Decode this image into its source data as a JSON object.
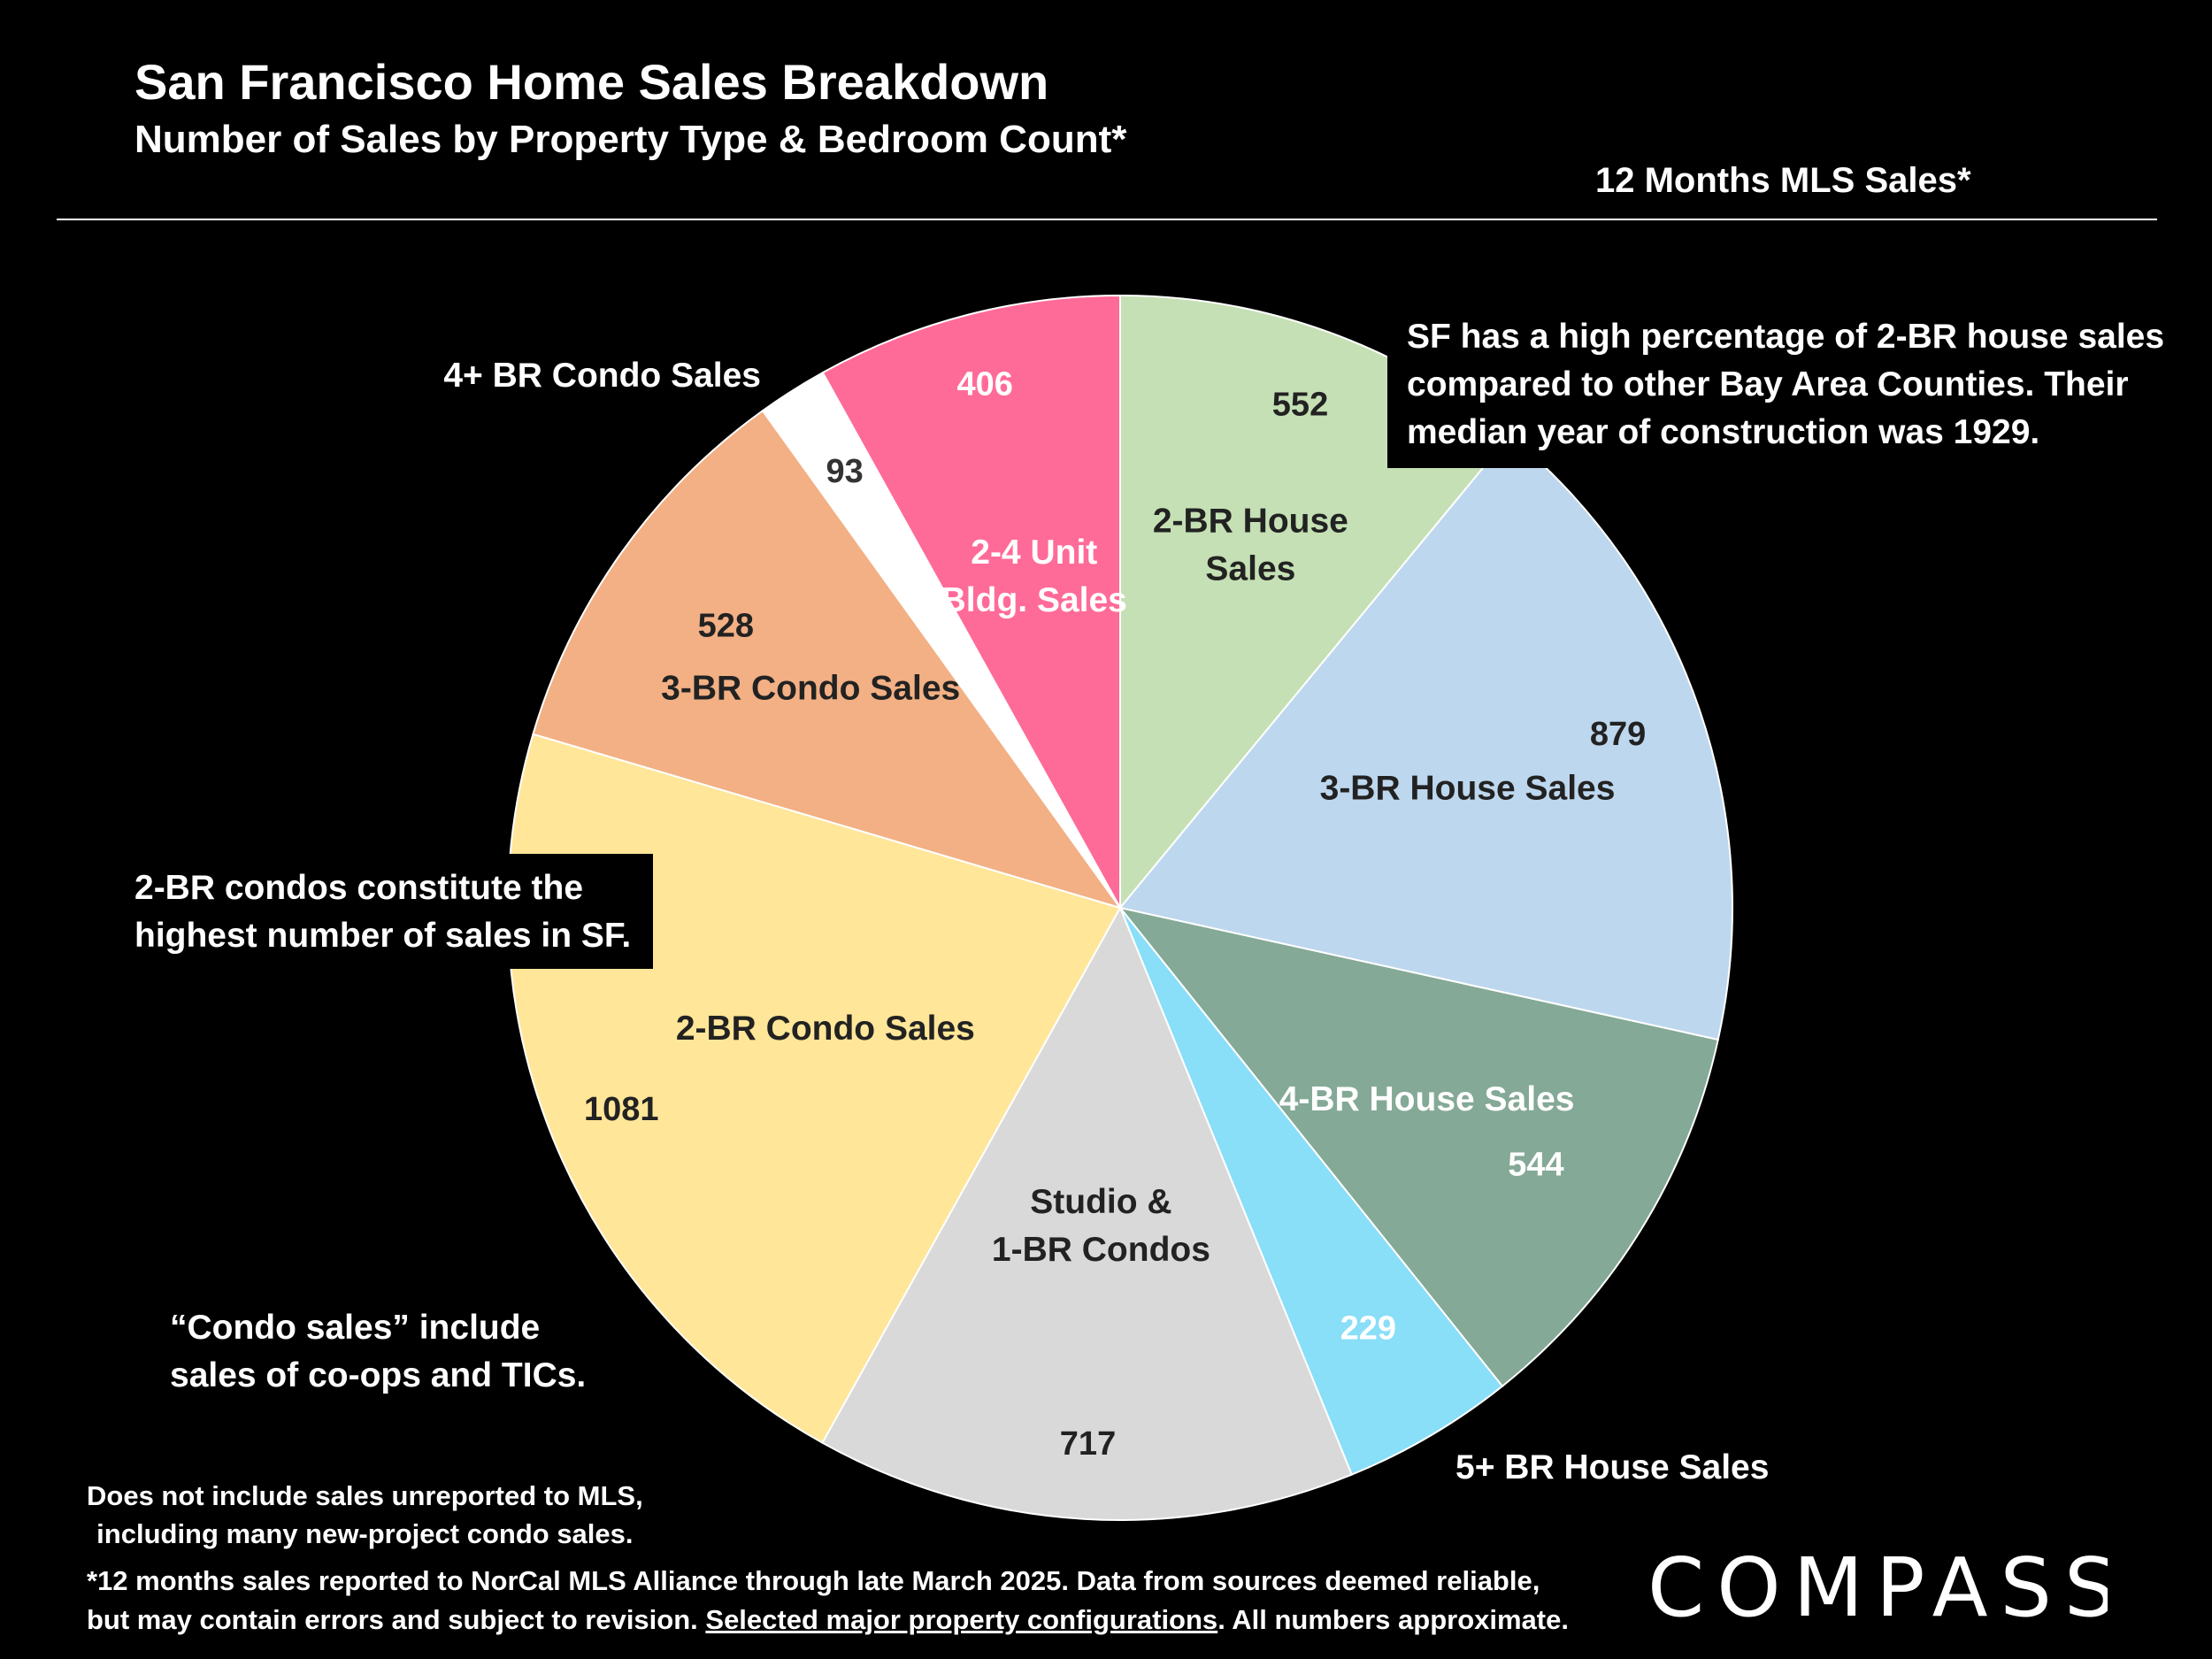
{
  "header": {
    "title": "San Francisco Home Sales Breakdown",
    "subtitle": "Number of Sales by Property Type & Bedroom Count*",
    "period": "12 Months MLS Sales*"
  },
  "chart_data": {
    "type": "pie",
    "slices": [
      {
        "label": "2-BR House Sales",
        "value": 552,
        "color": "#c5e0b4"
      },
      {
        "label": "3-BR House Sales",
        "value": 879,
        "color": "#bdd7ee"
      },
      {
        "label": "4-BR House Sales",
        "value": 544,
        "color": "#84a996"
      },
      {
        "label": "5+ BR House Sales",
        "value": 229,
        "color": "#89def8"
      },
      {
        "label": "Studio & 1-BR Condos",
        "value": 717,
        "color": "#d9d9d9"
      },
      {
        "label": "2-BR Condo Sales",
        "value": 1081,
        "color": "#ffe699"
      },
      {
        "label": "3-BR Condo Sales",
        "value": 528,
        "color": "#f2b084"
      },
      {
        "label": "4+ BR Condo Sales",
        "value": 93,
        "color": "#ffffff"
      },
      {
        "label": "2-4 Unit Bldg. Sales",
        "value": 406,
        "color": "#ff6b98"
      }
    ],
    "label_lines": {
      "2-BR House Sales": [
        "2-BR House",
        "Sales"
      ],
      "Studio & 1-BR Condos": [
        "Studio &",
        "1-BR Condos"
      ],
      "2-4 Unit Bldg. Sales": [
        "2-4 Unit",
        "Bldg. Sales"
      ]
    }
  },
  "annotations": {
    "two_br_house": [
      "SF has a high percentage of 2-BR house sales",
      "compared to other Bay Area Counties. Their",
      "median year of construction was 1929."
    ],
    "two_br_condo": [
      "2-BR condos constitute the",
      "highest number of sales in SF."
    ],
    "condo_definition": [
      "“Condo sales” include",
      "sales of co-ops and TICs."
    ],
    "mls_note": [
      "Does not include sales unreported to MLS,",
      "including many new-project condo sales."
    ]
  },
  "footnote": {
    "line1": "*12 months sales reported to NorCal MLS Alliance through late March 2025. Data from sources deemed reliable,",
    "line2_pre": "but may contain errors and subject to revision. ",
    "line2_link": "Selected major property configurations",
    "line2_post": ". All numbers approximate."
  },
  "brand": {
    "logo_text": "COMPASS"
  }
}
